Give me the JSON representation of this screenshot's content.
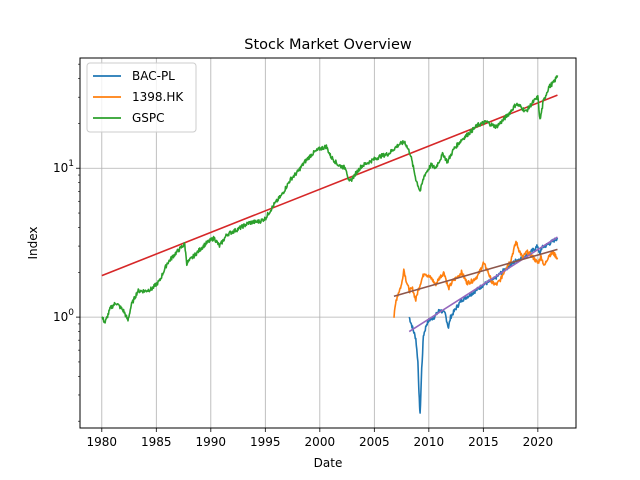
{
  "chart_data": {
    "type": "line",
    "title": "Stock Market Overview",
    "xlabel": "Date",
    "ylabel": "Index",
    "yscale": "log",
    "xlim": [
      1978.0,
      2023.5
    ],
    "ylim": [
      0.18,
      55
    ],
    "grid": true,
    "legend_position": "top-left",
    "x_ticks": [
      1980,
      1985,
      1990,
      1995,
      2000,
      2005,
      2010,
      2015,
      2020
    ],
    "y_ticks": [
      {
        "value": 1,
        "base": "10",
        "exp": "0"
      },
      {
        "value": 10,
        "base": "10",
        "exp": "1"
      }
    ],
    "colors": {
      "BAC-PL": "#1f77b4",
      "1398.HK": "#ff7f0e",
      "GSPC": "#2ca02c",
      "gspc_trend": "#d62728",
      "bac_trend": "#9467bd",
      "hk_trend": "#8c564b",
      "grid": "#b0b0b0"
    },
    "series": [
      {
        "name": "BAC-PL",
        "x": [
          2008.2,
          2008.5,
          2008.8,
          2009.0,
          2009.1,
          2009.2,
          2009.35,
          2009.5,
          2009.8,
          2010.0,
          2010.5,
          2011.0,
          2011.5,
          2011.8,
          2012.0,
          2012.5,
          2013.0,
          2014.0,
          2015.0,
          2016.0,
          2017.0,
          2018.0,
          2019.0,
          2020.0,
          2020.2,
          2020.3,
          2021.0,
          2021.8
        ],
        "y": [
          1.0,
          0.85,
          0.72,
          0.5,
          0.3,
          0.22,
          0.45,
          0.75,
          0.9,
          0.95,
          1.0,
          1.12,
          1.05,
          0.85,
          1.0,
          1.15,
          1.3,
          1.45,
          1.65,
          1.8,
          2.1,
          2.4,
          2.6,
          3.0,
          2.6,
          2.9,
          3.1,
          3.4
        ]
      },
      {
        "name": "1398.HK",
        "x": [
          2006.8,
          2007.0,
          2007.2,
          2007.5,
          2007.7,
          2007.9,
          2008.2,
          2008.5,
          2008.8,
          2009.0,
          2009.3,
          2009.6,
          2009.9,
          2010.3,
          2010.6,
          2011.0,
          2011.4,
          2011.8,
          2012.2,
          2012.6,
          2013.0,
          2013.5,
          2014.0,
          2014.5,
          2015.0,
          2015.4,
          2015.8,
          2016.2,
          2016.6,
          2017.0,
          2017.5,
          2018.0,
          2018.3,
          2018.6,
          2019.0,
          2019.5,
          2020.0,
          2020.3,
          2020.6,
          2021.0,
          2021.4,
          2021.8
        ],
        "y": [
          1.0,
          1.3,
          1.45,
          1.65,
          2.1,
          1.8,
          1.5,
          1.55,
          1.3,
          1.5,
          1.75,
          2.0,
          1.9,
          1.8,
          1.65,
          1.85,
          2.0,
          1.55,
          1.75,
          1.85,
          2.0,
          1.7,
          1.75,
          1.9,
          2.3,
          2.05,
          1.7,
          1.65,
          1.8,
          2.1,
          2.4,
          3.2,
          2.8,
          2.5,
          2.75,
          2.55,
          2.3,
          2.55,
          2.2,
          2.6,
          2.7,
          2.5
        ]
      },
      {
        "name": "GSPC",
        "x": [
          1980.0,
          1980.3,
          1980.8,
          1981.3,
          1982.0,
          1982.4,
          1982.7,
          1983.3,
          1984.0,
          1984.6,
          1985.3,
          1986.0,
          1986.8,
          1987.6,
          1987.8,
          1988.5,
          1989.5,
          1990.3,
          1990.8,
          1991.5,
          1992.5,
          1993.5,
          1994.5,
          1995.0,
          1995.8,
          1996.5,
          1997.3,
          1998.0,
          1998.6,
          1999.3,
          2000.0,
          2000.6,
          2001.0,
          2001.7,
          2002.4,
          2002.7,
          2003.2,
          2003.8,
          2004.5,
          2005.5,
          2006.3,
          2006.8,
          2007.3,
          2007.8,
          2008.3,
          2008.8,
          2009.2,
          2009.6,
          2010.2,
          2010.6,
          2011.3,
          2011.7,
          2012.3,
          2013.0,
          2013.8,
          2014.5,
          2015.3,
          2015.8,
          2016.2,
          2016.8,
          2017.5,
          2018.0,
          2018.4,
          2018.9,
          2019.5,
          2020.0,
          2020.2,
          2020.5,
          2021.0,
          2021.5,
          2021.8
        ],
        "y": [
          1.0,
          0.92,
          1.15,
          1.25,
          1.1,
          0.95,
          1.2,
          1.5,
          1.5,
          1.55,
          1.75,
          2.3,
          2.7,
          3.1,
          2.3,
          2.6,
          3.1,
          3.4,
          3.0,
          3.6,
          3.9,
          4.3,
          4.4,
          4.6,
          5.7,
          6.6,
          8.4,
          9.5,
          11.0,
          12.5,
          13.5,
          14.0,
          12.0,
          10.5,
          10.0,
          8.0,
          9.0,
          10.3,
          11.0,
          12.0,
          12.5,
          13.5,
          14.5,
          15.0,
          12.5,
          8.5,
          7.0,
          9.0,
          10.5,
          10.0,
          12.5,
          11.0,
          13.5,
          15.5,
          17.5,
          19.5,
          20.5,
          19.5,
          19.0,
          21.0,
          24.0,
          27.0,
          26.0,
          24.0,
          27.5,
          30.0,
          21.0,
          28.0,
          35.0,
          38.0,
          42.0
        ]
      }
    ],
    "trendlines": [
      {
        "of": "GSPC",
        "x": [
          1980.0,
          2021.8
        ],
        "y": [
          1.9,
          31.0
        ]
      },
      {
        "of": "BAC-PL",
        "x": [
          2008.2,
          2021.8
        ],
        "y": [
          0.8,
          3.45
        ]
      },
      {
        "of": "1398.HK",
        "x": [
          2006.8,
          2021.8
        ],
        "y": [
          1.38,
          2.85
        ]
      }
    ]
  }
}
